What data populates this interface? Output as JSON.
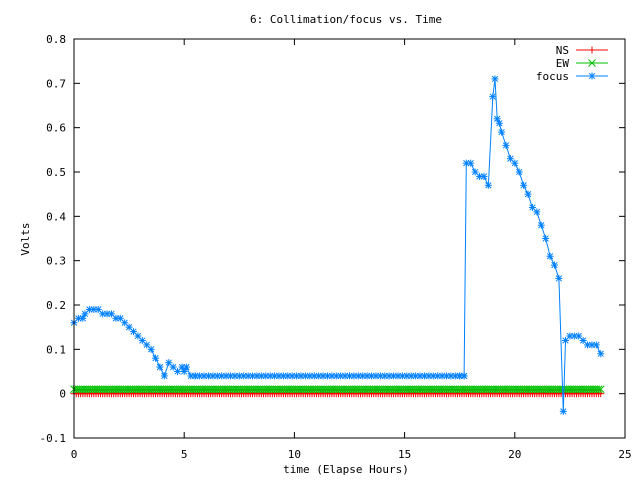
{
  "chart_data": {
    "type": "line",
    "title": "6: Collimation/focus vs. Time",
    "xlabel": "time (Elapse Hours)",
    "ylabel": "Volts",
    "xlim": [
      0,
      25
    ],
    "ylim": [
      -0.1,
      0.8
    ],
    "x_ticks": [
      0,
      5,
      10,
      15,
      20,
      25
    ],
    "x_tick_labels": [
      "0",
      "5",
      "10",
      "15",
      "20",
      "25"
    ],
    "y_ticks": [
      -0.1,
      0,
      0.1,
      0.2,
      0.3,
      0.4,
      0.5,
      0.6,
      0.7,
      0.8
    ],
    "y_tick_labels": [
      "-0.1",
      "0",
      "0.1",
      "0.2",
      "0.3",
      "0.4",
      "0.5",
      "0.6",
      "0.7",
      "0.8"
    ],
    "grid": false,
    "legend_position": "top-right",
    "series": [
      {
        "name": "NS",
        "color": "#ff0000",
        "marker": "plus",
        "x_start": 0,
        "x_end": 23.9,
        "x_step": 0.1,
        "value": 0
      },
      {
        "name": "EW",
        "color": "#00c000",
        "marker": "cross",
        "x_start": 0,
        "x_end": 23.9,
        "x_step": 0.1,
        "value": 0.01
      },
      {
        "name": "focus",
        "color": "#0080ff",
        "marker": "star",
        "points": [
          [
            0.0,
            0.16
          ],
          [
            0.2,
            0.17
          ],
          [
            0.4,
            0.17
          ],
          [
            0.5,
            0.18
          ],
          [
            0.7,
            0.19
          ],
          [
            0.9,
            0.19
          ],
          [
            1.1,
            0.19
          ],
          [
            1.3,
            0.18
          ],
          [
            1.5,
            0.18
          ],
          [
            1.7,
            0.18
          ],
          [
            1.9,
            0.17
          ],
          [
            2.1,
            0.17
          ],
          [
            2.3,
            0.16
          ],
          [
            2.5,
            0.15
          ],
          [
            2.7,
            0.14
          ],
          [
            2.9,
            0.13
          ],
          [
            3.1,
            0.12
          ],
          [
            3.3,
            0.11
          ],
          [
            3.5,
            0.1
          ],
          [
            3.7,
            0.08
          ],
          [
            3.9,
            0.06
          ],
          [
            4.1,
            0.04
          ],
          [
            4.3,
            0.07
          ],
          [
            4.5,
            0.06
          ],
          [
            4.7,
            0.05
          ],
          [
            4.9,
            0.06
          ],
          [
            5.0,
            0.05
          ],
          [
            5.1,
            0.06
          ],
          [
            5.3,
            0.04
          ],
          [
            5.5,
            0.04
          ],
          [
            17.5,
            0.04
          ],
          [
            17.7,
            0.04
          ],
          [
            17.8,
            0.52
          ],
          [
            18.0,
            0.52
          ],
          [
            18.2,
            0.5
          ],
          [
            18.4,
            0.49
          ],
          [
            18.6,
            0.49
          ],
          [
            18.8,
            0.47
          ],
          [
            19.0,
            0.67
          ],
          [
            19.1,
            0.71
          ],
          [
            19.2,
            0.62
          ],
          [
            19.3,
            0.61
          ],
          [
            19.4,
            0.59
          ],
          [
            19.6,
            0.56
          ],
          [
            19.8,
            0.53
          ],
          [
            20.0,
            0.52
          ],
          [
            20.2,
            0.5
          ],
          [
            20.4,
            0.47
          ],
          [
            20.6,
            0.45
          ],
          [
            20.8,
            0.42
          ],
          [
            21.0,
            0.41
          ],
          [
            21.2,
            0.38
          ],
          [
            21.4,
            0.35
          ],
          [
            21.6,
            0.31
          ],
          [
            21.8,
            0.29
          ],
          [
            22.0,
            0.26
          ],
          [
            22.2,
            -0.04
          ],
          [
            22.3,
            0.12
          ],
          [
            22.5,
            0.13
          ],
          [
            22.7,
            0.13
          ],
          [
            22.9,
            0.13
          ],
          [
            23.1,
            0.12
          ],
          [
            23.3,
            0.11
          ],
          [
            23.5,
            0.11
          ],
          [
            23.7,
            0.11
          ],
          [
            23.9,
            0.09
          ]
        ],
        "flat_segment": {
          "x_start": 5.5,
          "x_end": 17.7,
          "x_step": 0.2,
          "value": 0.04
        }
      }
    ]
  }
}
